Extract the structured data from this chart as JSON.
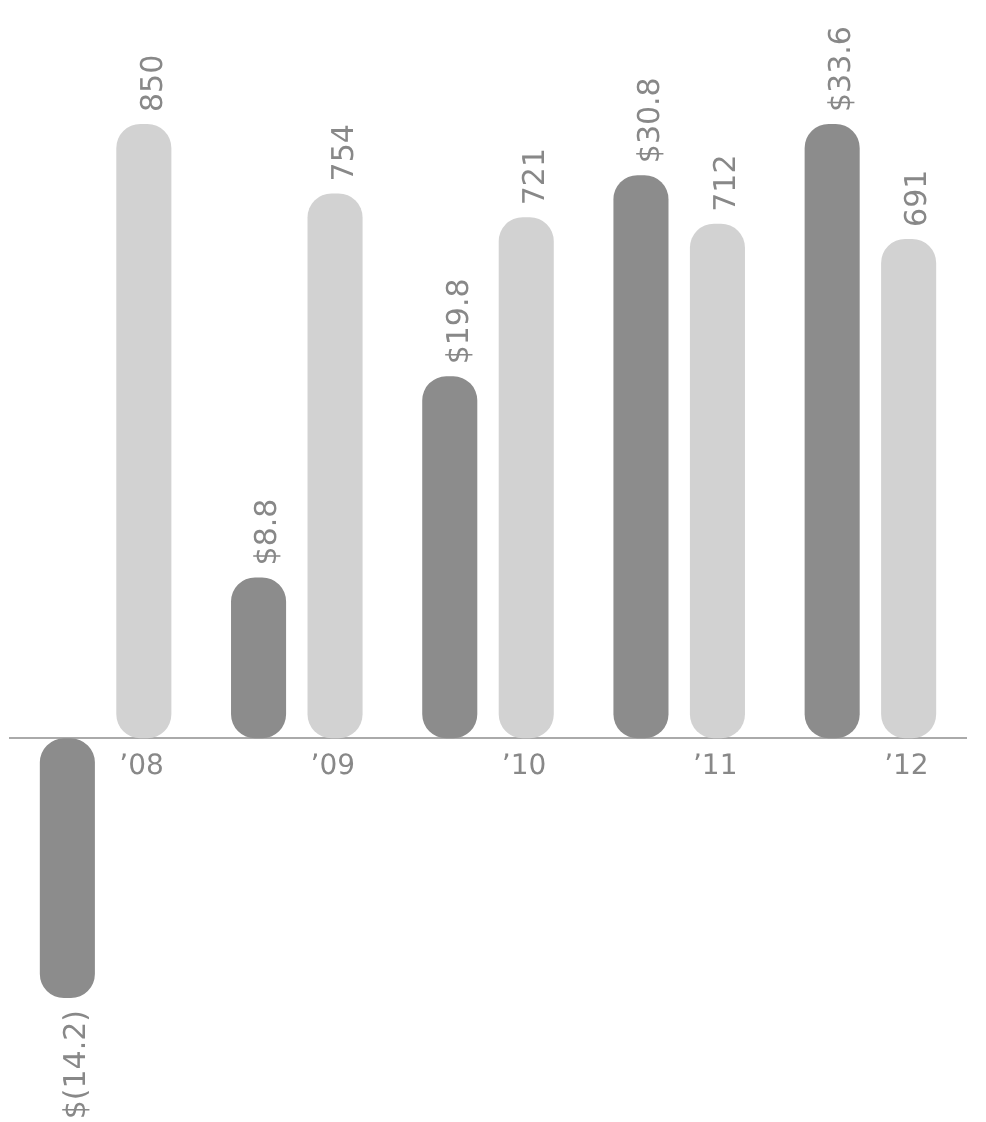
{
  "chart_data": {
    "type": "bar",
    "categories": [
      "’08",
      "’09",
      "’10",
      "’11",
      "’12"
    ],
    "series": [
      {
        "color": "#8c8c8c",
        "values": [
          -14.2,
          8.8,
          19.8,
          30.8,
          33.6
        ],
        "value_labels": [
          "$(14.2)",
          "$8.8",
          "$19.8",
          "$30.8",
          "$33.6"
        ]
      },
      {
        "color": "#d2d2d2",
        "values": [
          850,
          754,
          721,
          712,
          691
        ],
        "axis": "y2",
        "value_labels": [
          "850",
          "754",
          "721",
          "712",
          "691"
        ]
      }
    ],
    "tick_labels": "x",
    "grid": false,
    "legend": false
  }
}
